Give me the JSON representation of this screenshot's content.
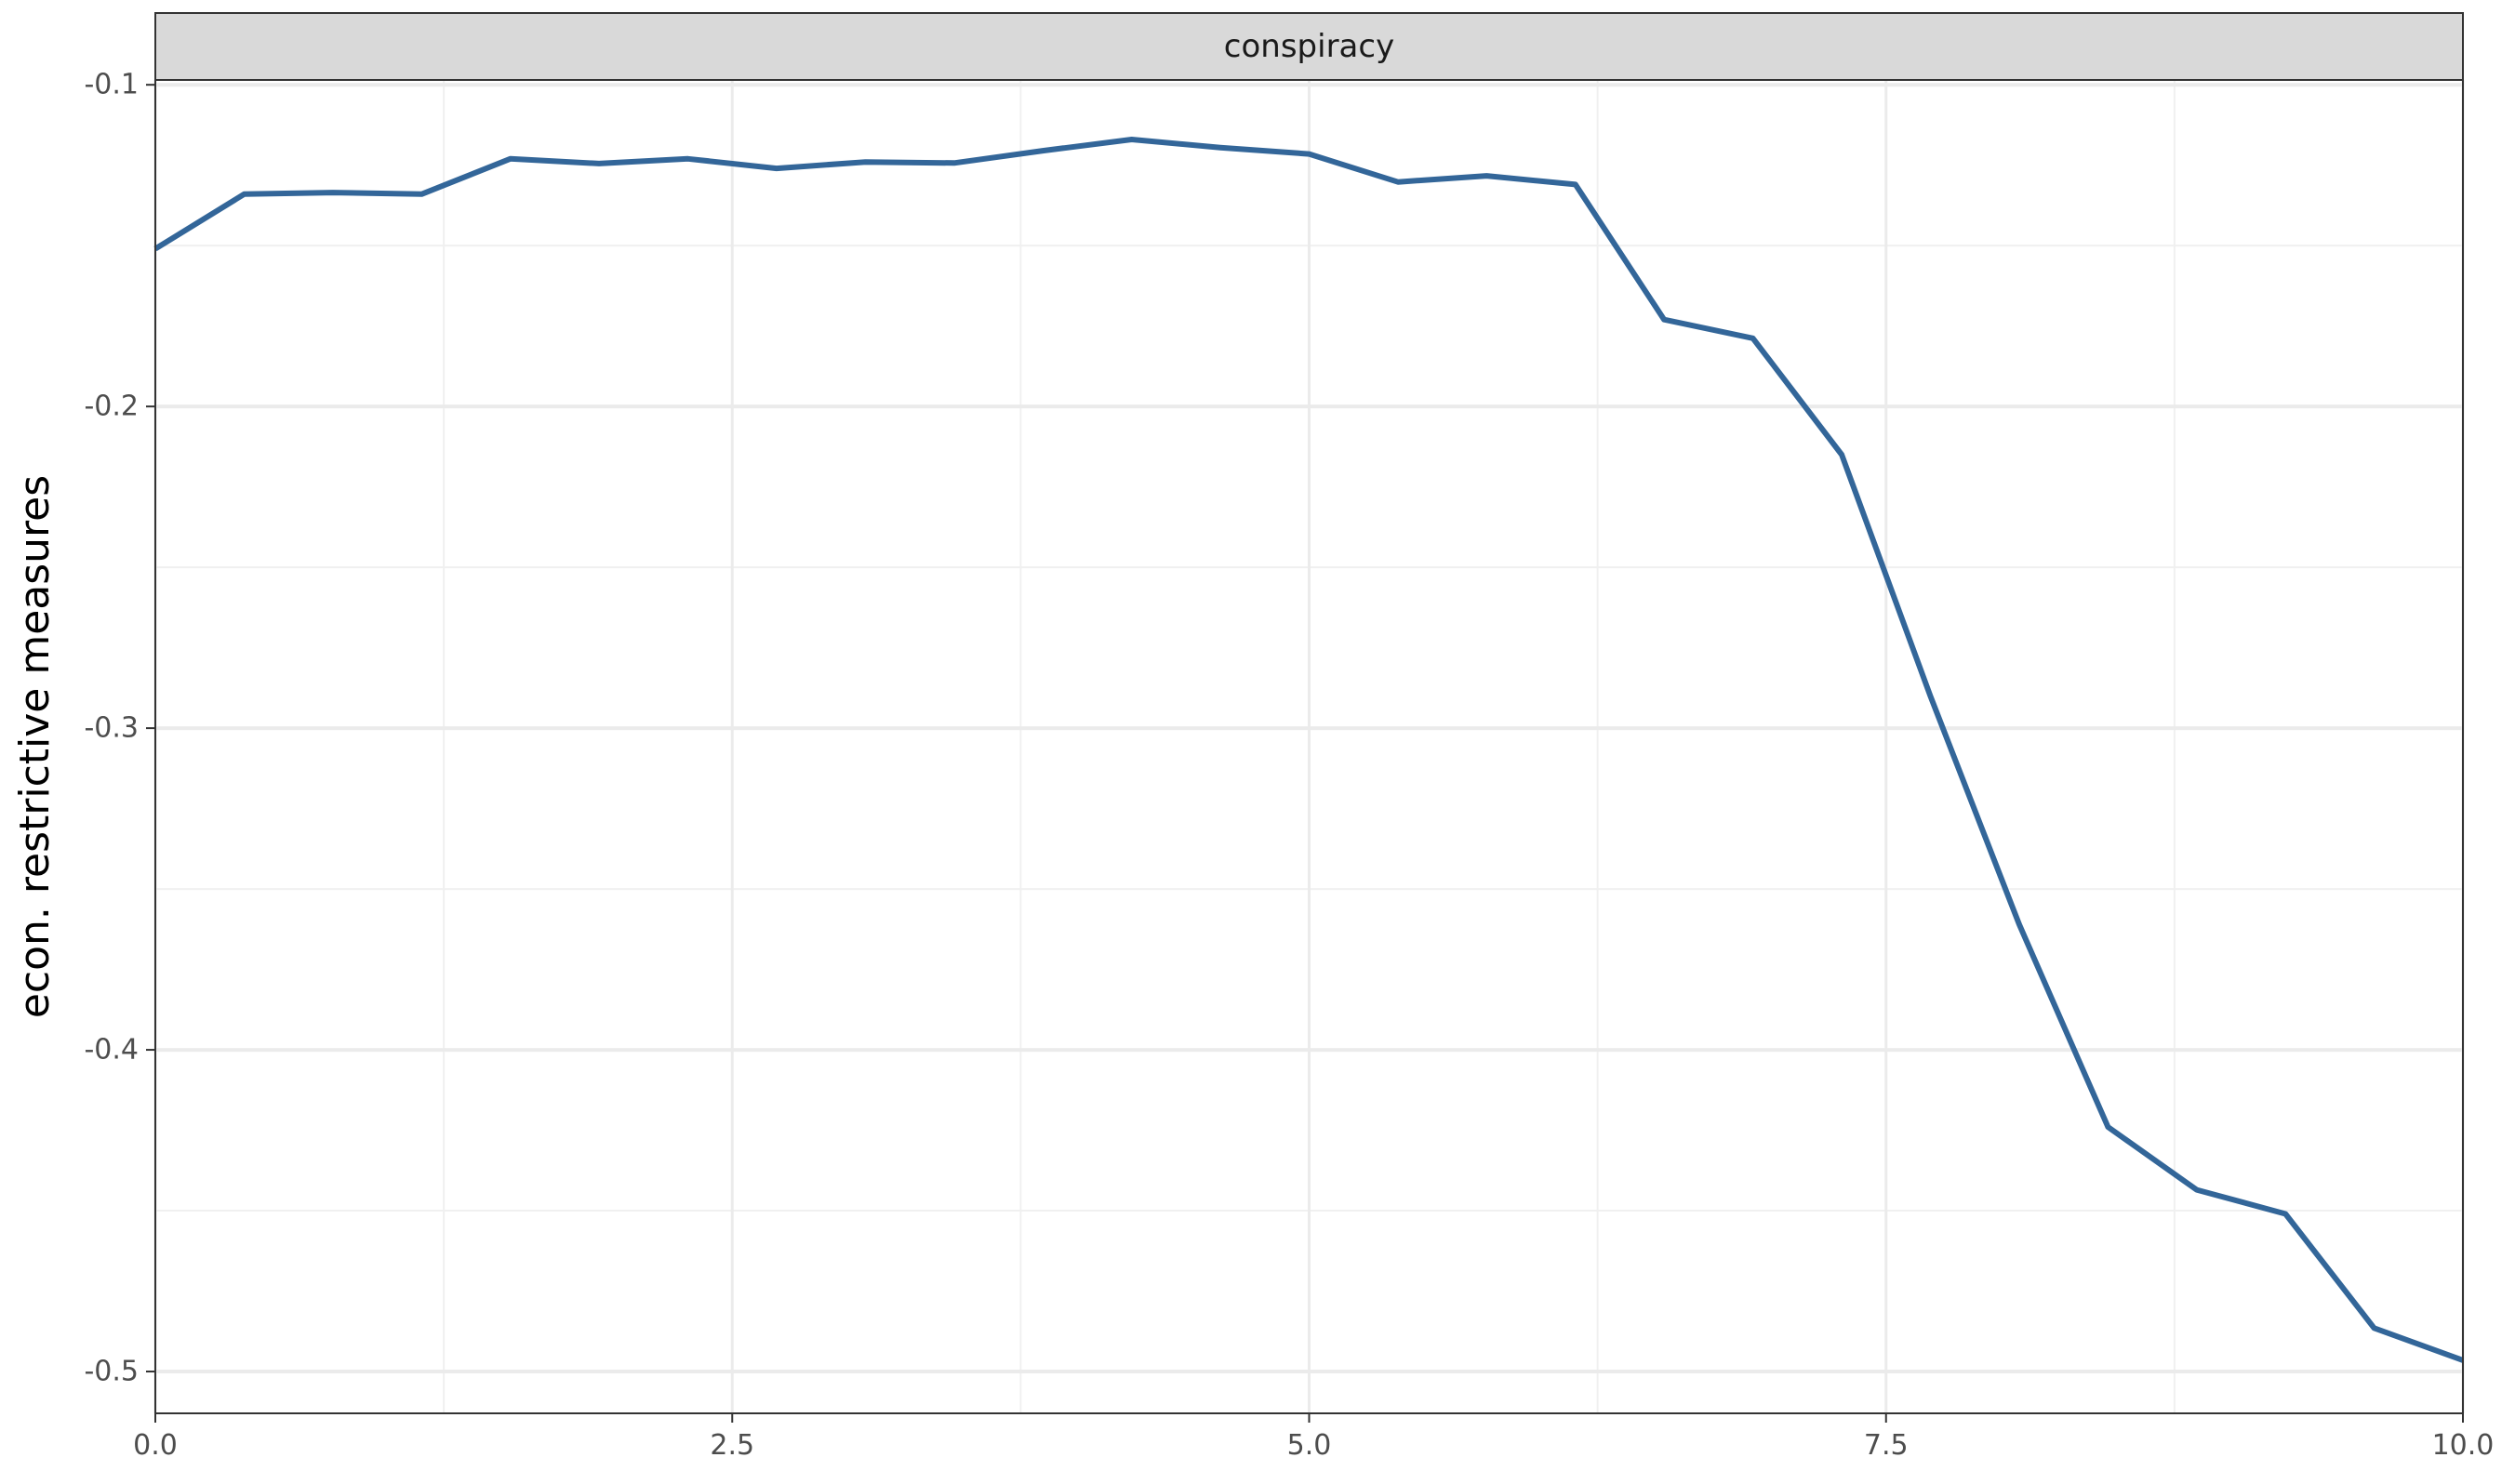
{
  "chart_data": {
    "type": "line",
    "facet_label": "conspiracy",
    "title": "",
    "xlabel": "",
    "ylabel": "econ. restrictive measures",
    "xlim": [
      0,
      10
    ],
    "ylim": [
      -0.513,
      -0.0985
    ],
    "x_ticks": [
      0,
      2.5,
      5,
      7.5,
      10
    ],
    "x_tick_labels": [
      "0.0",
      "2.5",
      "5.0",
      "7.5",
      "10.0"
    ],
    "y_ticks": [
      -0.5,
      -0.4,
      -0.3,
      -0.2,
      -0.1
    ],
    "y_tick_labels": [
      "-0.5",
      "-0.4",
      "-0.3",
      "-0.2",
      "-0.1"
    ],
    "grid": true,
    "series": [
      {
        "color": "#336699",
        "x": [
          0,
          0.385,
          0.769,
          1.154,
          1.538,
          1.923,
          2.308,
          2.692,
          3.077,
          3.462,
          3.846,
          4.231,
          4.615,
          5.0,
          5.385,
          5.769,
          6.154,
          6.538,
          6.923,
          7.308,
          7.692,
          8.077,
          8.462,
          8.846,
          9.231,
          9.615,
          10.0
        ],
        "y": [
          -0.151,
          -0.134,
          -0.1335,
          -0.134,
          -0.123,
          -0.1245,
          -0.123,
          -0.126,
          -0.124,
          -0.1243,
          -0.1205,
          -0.117,
          -0.1195,
          -0.1215,
          -0.1302,
          -0.1283,
          -0.131,
          -0.173,
          -0.1788,
          -0.215,
          -0.29,
          -0.361,
          -0.424,
          -0.4435,
          -0.451,
          -0.4865,
          -0.4965
        ]
      }
    ]
  }
}
